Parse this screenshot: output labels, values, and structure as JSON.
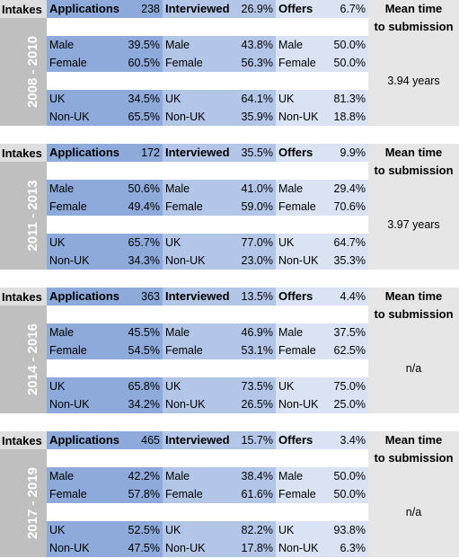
{
  "blocks": [
    {
      "intakes_label": "Intakes",
      "years": "2008 - 2010",
      "applications_label": "Applications",
      "applications_value": "238",
      "interviewed_label": "Interviewed",
      "interviewed_value": "26.9%",
      "offers_label": "Offers",
      "offers_value": "6.7%",
      "gender": [
        {
          "label": "Male",
          "app": "39.5%",
          "int": "43.8%",
          "off": "50.0%"
        },
        {
          "label": "Female",
          "app": "60.5%",
          "int": "56.3%",
          "off": "50.0%"
        }
      ],
      "origin": [
        {
          "label": "UK",
          "app": "34.5%",
          "int": "64.1%",
          "off": "81.3%"
        },
        {
          "label": "Non-UK",
          "app": "65.5%",
          "int": "35.9%",
          "off": "18.8%"
        }
      ],
      "mean_title_1": "Mean time",
      "mean_title_2": "to submission",
      "mean_value": "3.94 years"
    },
    {
      "intakes_label": "Intakes",
      "years": "2011 - 2013",
      "applications_label": "Applications",
      "applications_value": "172",
      "interviewed_label": "Interviewed",
      "interviewed_value": "35.5%",
      "offers_label": "Offers",
      "offers_value": "9.9%",
      "gender": [
        {
          "label": "Male",
          "app": "50.6%",
          "int": "41.0%",
          "off": "29.4%"
        },
        {
          "label": "Female",
          "app": "49.4%",
          "int": "59.0%",
          "off": "70.6%"
        }
      ],
      "origin": [
        {
          "label": "UK",
          "app": "65.7%",
          "int": "77.0%",
          "off": "64.7%"
        },
        {
          "label": "Non-UK",
          "app": "34.3%",
          "int": "23.0%",
          "off": "35.3%"
        }
      ],
      "mean_title_1": "Mean time",
      "mean_title_2": "to submission",
      "mean_value": "3.97 years"
    },
    {
      "intakes_label": "Intakes",
      "years": "2014 - 2016",
      "applications_label": "Applications",
      "applications_value": "363",
      "interviewed_label": "Interviewed",
      "interviewed_value": "13.5%",
      "offers_label": "Offers",
      "offers_value": "4.4%",
      "gender": [
        {
          "label": "Male",
          "app": "45.5%",
          "int": "46.9%",
          "off": "37.5%"
        },
        {
          "label": "Female",
          "app": "54.5%",
          "int": "53.1%",
          "off": "62.5%"
        }
      ],
      "origin": [
        {
          "label": "UK",
          "app": "65.8%",
          "int": "73.5%",
          "off": "75.0%"
        },
        {
          "label": "Non-UK",
          "app": "34.2%",
          "int": "26.5%",
          "off": "25.0%"
        }
      ],
      "mean_title_1": "Mean time",
      "mean_title_2": "to submission",
      "mean_value": "n/a"
    },
    {
      "intakes_label": "Intakes",
      "years": "2017 - 2019",
      "applications_label": "Applications",
      "applications_value": "465",
      "interviewed_label": "Interviewed",
      "interviewed_value": "15.7%",
      "offers_label": "Offers",
      "offers_value": "3.4%",
      "gender": [
        {
          "label": "Male",
          "app": "42.2%",
          "int": "38.4%",
          "off": "50.0%"
        },
        {
          "label": "Female",
          "app": "57.8%",
          "int": "61.6%",
          "off": "50.0%"
        }
      ],
      "origin": [
        {
          "label": "UK",
          "app": "52.5%",
          "int": "82.2%",
          "off": "93.8%"
        },
        {
          "label": "Non-UK",
          "app": "47.5%",
          "int": "17.8%",
          "off": "6.3%"
        }
      ],
      "mean_title_1": "Mean time",
      "mean_title_2": "to submission",
      "mean_value": "n/a"
    }
  ]
}
